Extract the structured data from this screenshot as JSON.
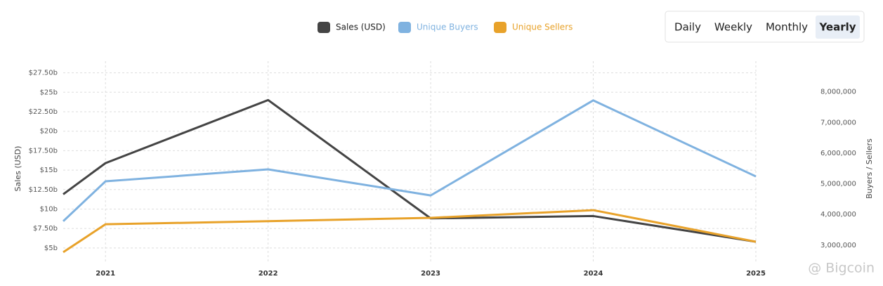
{
  "chart_data": {
    "type": "line",
    "x": [
      2020.74,
      2021,
      2022,
      2023,
      2024,
      2025
    ],
    "xlim": [
      2020.74,
      2025
    ],
    "xticks": [
      2021,
      2022,
      2023,
      2024,
      2025
    ],
    "ylim": [
      3,
      29
    ],
    "yticks": [
      {
        "value": 5,
        "label": "$5b"
      },
      {
        "value": 7.5,
        "label": "$7.50b"
      },
      {
        "value": 10,
        "label": "$10b"
      },
      {
        "value": 12.5,
        "label": "$12.50b"
      },
      {
        "value": 15,
        "label": "$15b"
      },
      {
        "value": 17.5,
        "label": "$17.50b"
      },
      {
        "value": 20,
        "label": "$20b"
      },
      {
        "value": 22.5,
        "label": "$22.50b"
      },
      {
        "value": 25,
        "label": "$25b"
      },
      {
        "value": 27.5,
        "label": "$27.50b"
      }
    ],
    "y2lim": [
      2400000,
      9000000
    ],
    "y2ticks": [
      {
        "value": 3000000,
        "label": "3,000,000"
      },
      {
        "value": 4000000,
        "label": "4,000,000"
      },
      {
        "value": 5000000,
        "label": "5,000,000"
      },
      {
        "value": 6000000,
        "label": "6,000,000"
      },
      {
        "value": 7000000,
        "label": "7,000,000"
      },
      {
        "value": 8000000,
        "label": "8,000,000"
      }
    ],
    "ylabel": "Sales (USD)",
    "y2label": "Buyers / Sellers",
    "grid": true,
    "series": [
      {
        "name": "Sales (USD)",
        "color": "#444444",
        "values": [
          11.9,
          15.9,
          24.0,
          8.8,
          9.1,
          5.8
        ]
      },
      {
        "name": "Unique Buyers",
        "color": "#7fb2e0",
        "axis": "y2",
        "values": [
          3780000,
          5080000,
          5470000,
          4620000,
          7720000,
          5240000
        ]
      },
      {
        "name": "Unique Sellers",
        "color": "#e8a22a",
        "axis": "y2",
        "values": [
          2770000,
          3680000,
          3780000,
          3890000,
          4140000,
          3110000
        ]
      }
    ]
  },
  "controls": {
    "options": [
      "Daily",
      "Weekly",
      "Monthly",
      "Yearly"
    ],
    "selected": 3
  },
  "watermark": "@ Bigcoin"
}
